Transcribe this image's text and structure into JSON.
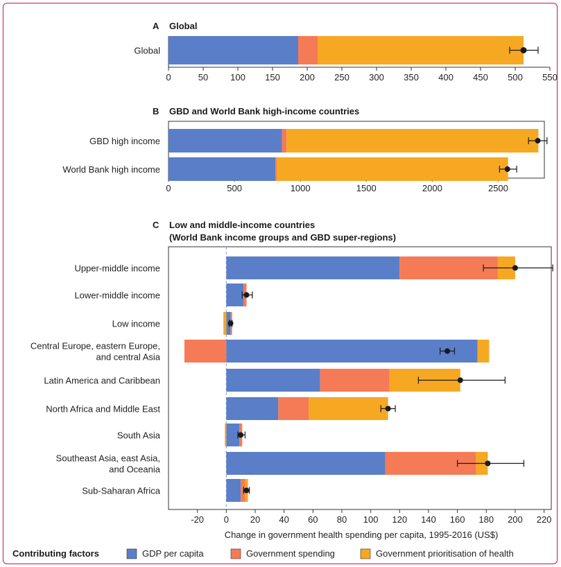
{
  "colors": {
    "gdp": "#5b7ec9",
    "gov_spending": "#f47b56",
    "prioritisation": "#f7a823",
    "point": "#1a1a1a",
    "dashed": "#8a9bb5"
  },
  "xlabel": "Change in government health spending per capita, 1995-2016 (US$)",
  "legend": {
    "title": "Contributing factors",
    "items": [
      "GDP per capita",
      "Government spending",
      "Government prioritisation of health"
    ]
  },
  "chart_data": [
    {
      "type": "bar",
      "panel": "A",
      "title": "Global",
      "orientation": "horizontal",
      "stacked": true,
      "categories": [
        "Global"
      ],
      "series": [
        {
          "name": "GDP per capita",
          "values": [
            187
          ]
        },
        {
          "name": "Government spending",
          "values": [
            28
          ]
        },
        {
          "name": "Government prioritisation of health",
          "values": [
            297
          ]
        }
      ],
      "point": [
        512
      ],
      "error": [
        [
          492,
          533
        ]
      ],
      "xlim": [
        0,
        550
      ],
      "xticks": [
        0,
        50,
        100,
        150,
        200,
        250,
        300,
        350,
        400,
        450,
        500,
        550
      ]
    },
    {
      "type": "bar",
      "panel": "B",
      "title": "GBD and World Bank high-income countries",
      "orientation": "horizontal",
      "stacked": true,
      "categories": [
        "GBD high income",
        "World Bank high income"
      ],
      "series": [
        {
          "name": "GDP per capita",
          "values": [
            860,
            810
          ]
        },
        {
          "name": "Government spending",
          "values": [
            35,
            10
          ]
        },
        {
          "name": "Government prioritisation of health",
          "values": [
            1910,
            1755
          ]
        }
      ],
      "point": [
        2800,
        2570
      ],
      "error": [
        [
          2730,
          2870
        ],
        [
          2510,
          2640
        ]
      ],
      "xlim": [
        0,
        2850
      ],
      "xticks": [
        0,
        500,
        1000,
        1500,
        2000,
        2500
      ]
    },
    {
      "type": "bar",
      "panel": "C",
      "title_lines": [
        "Low and middle-income countries",
        "(World Bank income groups and GBD super-regions)"
      ],
      "orientation": "horizontal",
      "stacked": true,
      "categories": [
        [
          "Upper-middle income"
        ],
        [
          "Lower-middle income"
        ],
        [
          "Low income"
        ],
        [
          "Central Europe, eastern Europe,",
          "and central Asia"
        ],
        [
          "Latin America and Caribbean"
        ],
        [
          "North Africa and Middle East"
        ],
        [
          "South Asia"
        ],
        [
          "Southeast Asia, east Asia,",
          "and Oceania"
        ],
        [
          "Sub-Saharan Africa"
        ]
      ],
      "series": [
        {
          "name": "GDP per capita",
          "values": [
            120,
            12,
            3,
            174,
            65,
            36,
            9,
            110,
            10
          ]
        },
        {
          "name": "Government spending",
          "values": [
            68,
            2,
            1,
            -29,
            48,
            21,
            2,
            63,
            3
          ]
        },
        {
          "name": "Government prioritisation of health",
          "values": [
            12,
            0,
            -2,
            8,
            49,
            55,
            -1,
            8,
            2
          ]
        }
      ],
      "point": [
        200,
        14,
        3,
        153,
        162,
        112,
        10,
        181,
        14
      ],
      "error": [
        [
          178,
          226
        ],
        [
          11,
          18
        ],
        [
          2,
          4
        ],
        [
          148,
          158
        ],
        [
          133,
          193
        ],
        [
          107,
          117
        ],
        [
          8,
          13
        ],
        [
          160,
          206
        ],
        [
          12,
          16
        ]
      ],
      "xlim": [
        -40,
        225
      ],
      "xticks": [
        -20,
        0,
        20,
        40,
        60,
        80,
        100,
        120,
        140,
        160,
        180,
        200,
        220
      ]
    }
  ]
}
